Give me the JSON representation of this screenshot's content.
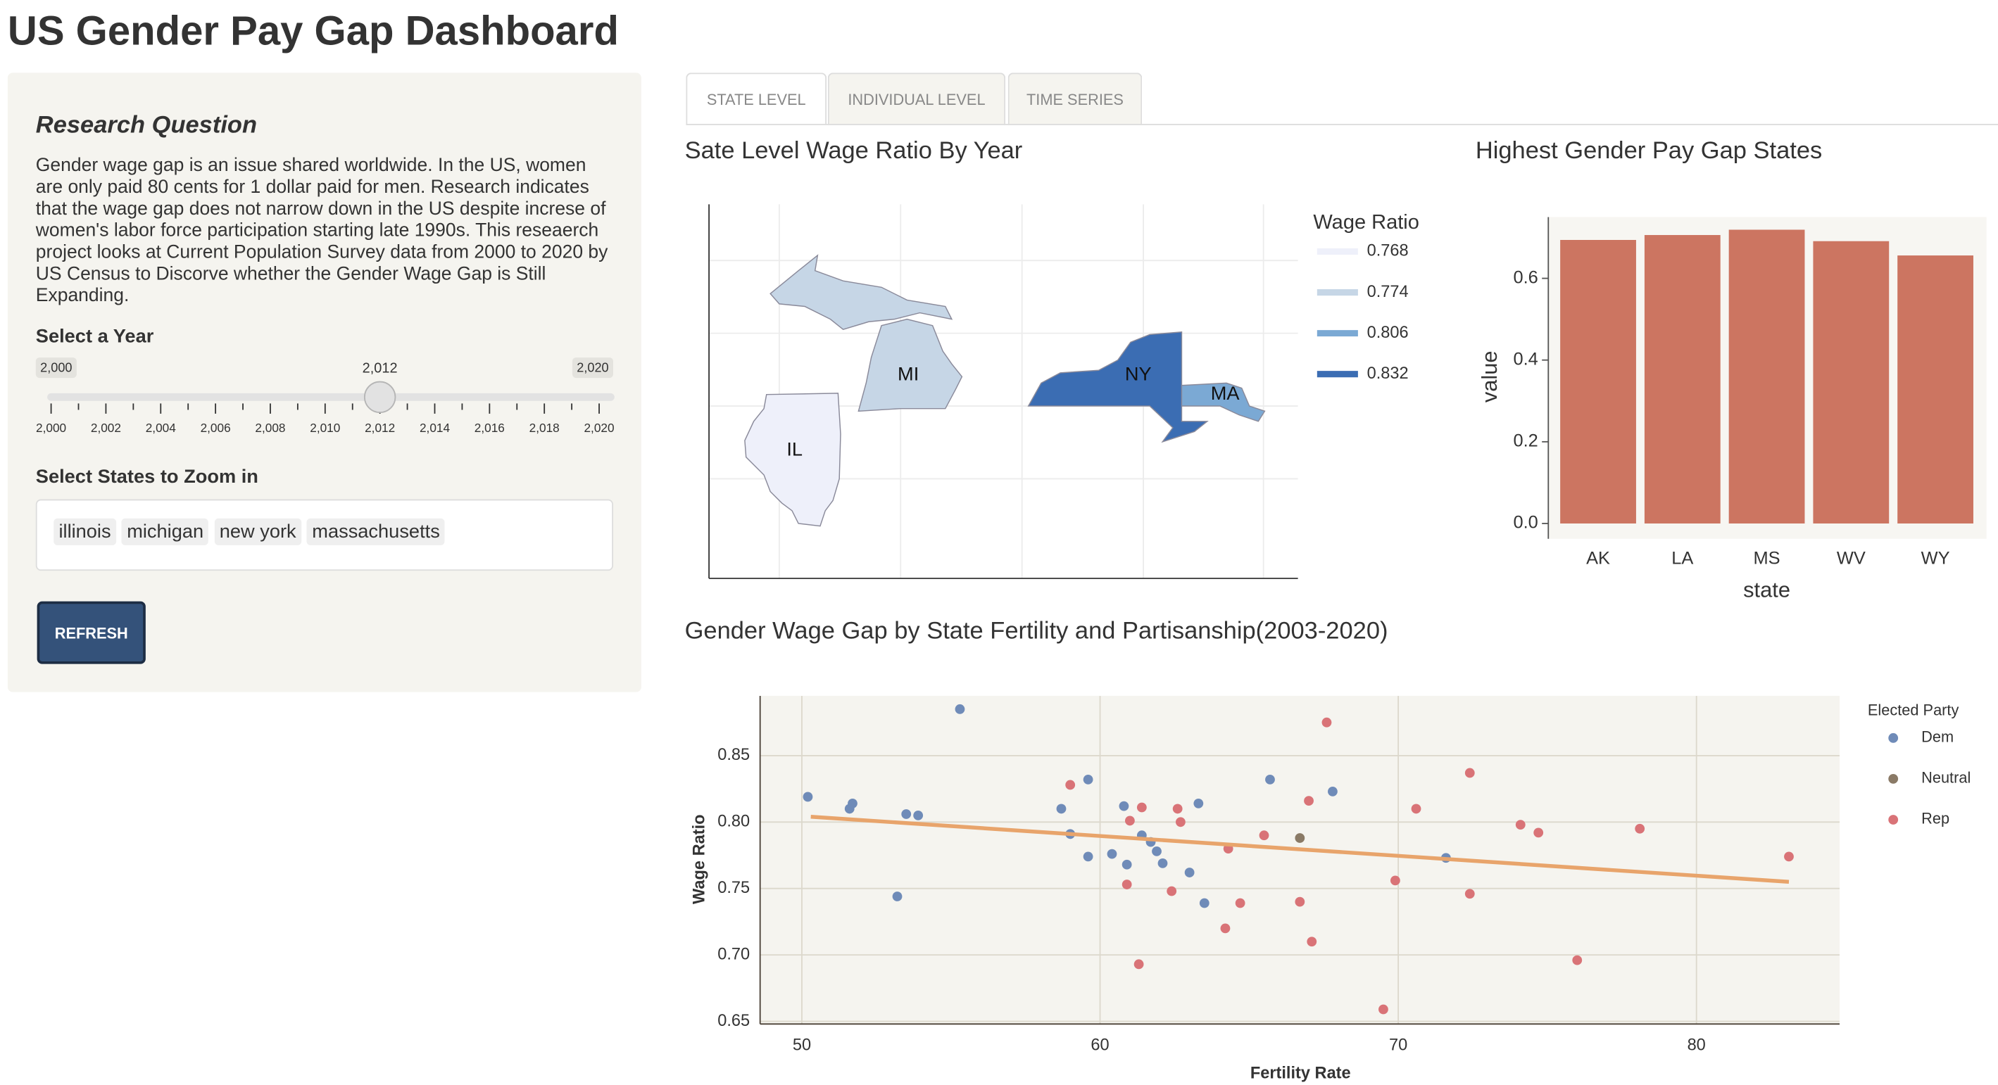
{
  "header": {
    "title": "US Gender Pay Gap Dashboard"
  },
  "sidebar": {
    "question_title": "Research Question",
    "question_text": "Gender wage gap is an issue shared worldwide. In the US, women are only paid 80 cents for 1 dollar paid for men. Research indicates that the wage gap does not narrow down in the US despite increse of women's labor force participation starting late 1990s. This reseaerch project looks at Current Population Survey data from 2000 to 2020 by US Census to Discorve whether the Gender Wage Gap is Still Expanding.",
    "year_label": "Select a Year",
    "slider": {
      "value": {
        "value": 2012,
        "label": "2,012"
      },
      "ticks": [
        {
          "value": 2000,
          "label": "2,000"
        },
        {
          "value": 2002,
          "label": "2,002"
        },
        {
          "value": 2004,
          "label": "2,004"
        },
        {
          "value": 2006,
          "label": "2,006"
        },
        {
          "value": 2008,
          "label": "2,008"
        },
        {
          "value": 2010,
          "label": "2,010"
        },
        {
          "value": 2012,
          "label": "2,012"
        },
        {
          "value": 2014,
          "label": "2,014"
        },
        {
          "value": 2016,
          "label": "2,016"
        },
        {
          "value": 2018,
          "label": "2,018"
        },
        {
          "value": 2020,
          "label": "2,020"
        }
      ]
    },
    "states_label": "Select States to Zoom in",
    "states": [
      "illinois",
      "michigan",
      "new york",
      "massachusetts"
    ],
    "button": "REFRESH"
  },
  "tabs": [
    "STATE LEVEL",
    "INDIVIDUAL LEVEL",
    "TIME SERIES"
  ],
  "chart_data": [
    {
      "type": "choropleth",
      "title": "Sate Level Wage Ratio By Year",
      "legend_title": "Wage Ratio",
      "categories": [
        "IL",
        "MI",
        "MA",
        "NY"
      ],
      "values": [
        0.768,
        0.774,
        0.806,
        0.832
      ],
      "colors": [
        "#eef0fa",
        "#c6d6e6",
        "#7ba9d4",
        "#3b6db3"
      ]
    },
    {
      "type": "bar",
      "title": "Highest Gender Pay Gap States",
      "x_label": "state",
      "y_label": "value",
      "categories": [
        "AK",
        "LA",
        "MS",
        "WV",
        "WY"
      ],
      "values": [
        0.694,
        0.706,
        0.719,
        0.691,
        0.656
      ],
      "color": "#cc7561",
      "ylim": [
        -0.0375,
        0.75
      ],
      "yticks": [
        {
          "value": 0,
          "label": "0.0"
        },
        0.2,
        0.4,
        0.6
      ]
    },
    {
      "type": "scatter",
      "title": "Gender Wage Gap by State Fertility and Partisanship(2003-2020)",
      "x_label": "Fertility Rate",
      "y_label": "Wage Ratio",
      "legend_title": "Elected Party",
      "xlim": [
        48.6,
        84.8
      ],
      "ylim": [
        0.648,
        0.895
      ],
      "xticks": [
        50,
        60,
        70,
        80
      ],
      "yticks": [
        0.65,
        {
          "value": 0.7,
          "label": "0.70"
        },
        0.75,
        {
          "value": 0.8,
          "label": "0.80"
        },
        0.85
      ],
      "grid": true,
      "series": [
        {
          "name": "Dem",
          "color": "#6f8bb8",
          "x": [
            50.2,
            51.6,
            51.7,
            53.2,
            53.5,
            53.9,
            55.3,
            58.7,
            59.0,
            59.6,
            59.6,
            60.4,
            60.8,
            60.9,
            61.4,
            61.7,
            61.9,
            62.1,
            63.0,
            63.3,
            63.5,
            65.7,
            67.8,
            71.6
          ],
          "values": [
            0.819,
            0.81,
            0.814,
            0.744,
            0.806,
            0.805,
            0.885,
            0.81,
            0.791,
            0.832,
            0.774,
            0.776,
            0.812,
            0.768,
            0.79,
            0.785,
            0.778,
            0.769,
            0.762,
            0.814,
            0.739,
            0.832,
            0.823,
            0.773
          ]
        },
        {
          "name": "Neutral",
          "color": "#8a7a66",
          "x": [
            66.7
          ],
          "values": [
            0.788
          ]
        },
        {
          "name": "Rep",
          "color": "#d97377",
          "x": [
            59.0,
            61.0,
            61.4,
            60.9,
            61.3,
            62.4,
            62.6,
            62.7,
            64.2,
            64.3,
            64.7,
            65.5,
            66.7,
            67.0,
            67.1,
            67.6,
            69.5,
            69.9,
            70.6,
            72.4,
            72.4,
            74.1,
            74.7,
            76.0,
            78.1,
            83.1
          ],
          "values": [
            0.828,
            0.801,
            0.811,
            0.753,
            0.693,
            0.748,
            0.81,
            0.8,
            0.72,
            0.78,
            0.739,
            0.79,
            0.74,
            0.816,
            0.71,
            0.875,
            0.659,
            0.756,
            0.81,
            0.837,
            0.746,
            0.798,
            0.792,
            0.696,
            0.795,
            0.774
          ]
        }
      ],
      "trend": {
        "x": [
          50.3,
          83.1
        ],
        "values": [
          0.804,
          0.755
        ],
        "color": "#e8a46b"
      }
    }
  ]
}
